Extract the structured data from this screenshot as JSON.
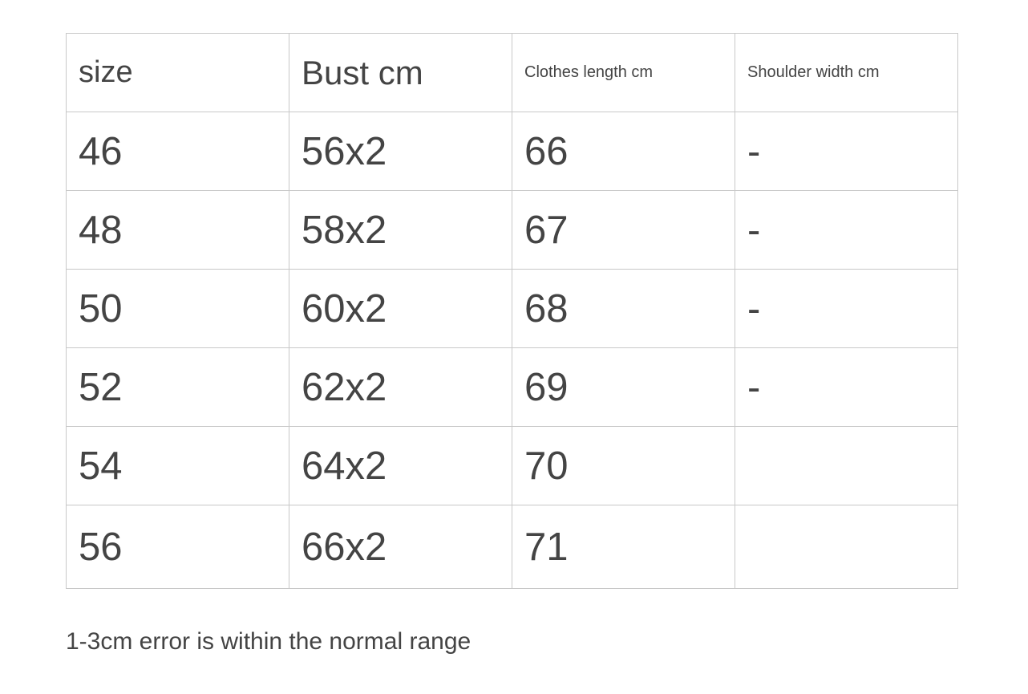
{
  "table": {
    "headers": [
      "size",
      "Bust cm",
      "Clothes length cm",
      "Shoulder width cm"
    ],
    "rows": [
      [
        "46",
        "56x2",
        "66",
        "-"
      ],
      [
        "48",
        "58x2",
        "67",
        "-"
      ],
      [
        "50",
        "60x2",
        "68",
        "-"
      ],
      [
        "52",
        "62x2",
        "69",
        "-"
      ],
      [
        "54",
        "64x2",
        "70",
        ""
      ],
      [
        "56",
        "66x2",
        "71",
        ""
      ]
    ]
  },
  "note": "1-3cm error is within the normal range"
}
